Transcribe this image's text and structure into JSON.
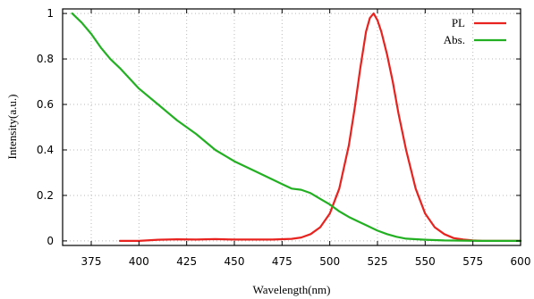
{
  "chart_data": {
    "type": "line",
    "xlabel": "Wavelength(nm)",
    "ylabel": "Intensity(a.u.)",
    "xlim": [
      360,
      600
    ],
    "ylim": [
      -0.02,
      1.02
    ],
    "xticks": [
      375,
      400,
      425,
      450,
      475,
      500,
      525,
      550,
      575,
      600
    ],
    "yticks": [
      0,
      0.2,
      0.4,
      0.6,
      0.8,
      1
    ],
    "ytick_labels": [
      "0",
      "0.2",
      "0.4",
      "0.6",
      "0.8",
      "1"
    ],
    "grid": true,
    "legend_position": "top-right",
    "series": [
      {
        "name": "PL",
        "color": "#e8231f",
        "x": [
          390,
          400,
          410,
          420,
          430,
          440,
          450,
          460,
          470,
          480,
          485,
          490,
          495,
          500,
          505,
          510,
          513,
          516,
          519,
          521,
          523,
          525,
          527,
          530,
          533,
          536,
          540,
          545,
          550,
          555,
          560,
          565,
          570,
          575,
          580,
          590,
          600
        ],
        "y": [
          0.0,
          0.0,
          0.005,
          0.007,
          0.006,
          0.008,
          0.006,
          0.006,
          0.006,
          0.009,
          0.015,
          0.03,
          0.06,
          0.12,
          0.23,
          0.42,
          0.58,
          0.76,
          0.92,
          0.98,
          1.0,
          0.97,
          0.92,
          0.82,
          0.7,
          0.56,
          0.4,
          0.23,
          0.12,
          0.06,
          0.03,
          0.012,
          0.006,
          0.002,
          0.0,
          0.0,
          0.0
        ]
      },
      {
        "name": "Abs.",
        "color": "#22b022",
        "x": [
          365,
          370,
          375,
          380,
          385,
          390,
          400,
          410,
          420,
          430,
          440,
          450,
          460,
          470,
          475,
          480,
          485,
          490,
          495,
          500,
          505,
          510,
          515,
          520,
          525,
          530,
          535,
          540,
          550,
          560,
          570,
          580,
          590,
          600
        ],
        "y": [
          1.0,
          0.96,
          0.91,
          0.85,
          0.8,
          0.76,
          0.67,
          0.6,
          0.53,
          0.47,
          0.4,
          0.35,
          0.31,
          0.27,
          0.25,
          0.23,
          0.225,
          0.21,
          0.185,
          0.16,
          0.13,
          0.105,
          0.085,
          0.065,
          0.045,
          0.03,
          0.018,
          0.01,
          0.005,
          0.002,
          0.001,
          0.0,
          0.0,
          0.0
        ]
      }
    ]
  }
}
